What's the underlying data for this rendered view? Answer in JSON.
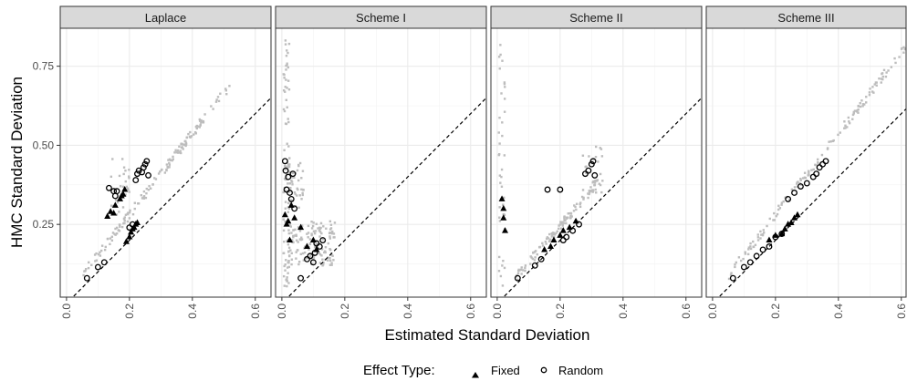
{
  "chart_data": {
    "type": "scatter",
    "xlabel": "Estimated Standard Deviation",
    "ylabel": "HMC Standard Deviation",
    "xlim": [
      -0.02,
      0.65
    ],
    "ylim": [
      0.02,
      0.87
    ],
    "x_ticks": [
      0.0,
      0.2,
      0.4,
      0.6
    ],
    "x_tick_labels": [
      "0.0",
      "0.2",
      "0.4",
      "0.6"
    ],
    "y_ticks": [
      0.25,
      0.5,
      0.75
    ],
    "y_tick_labels": [
      "0.25",
      "0.50",
      "0.75"
    ],
    "reference_line": "identity (y = x), dashed",
    "grid": true,
    "legend": {
      "title": "Effect Type:",
      "position": "bottom",
      "entries": [
        {
          "label": "Fixed",
          "marker": "triangle-filled"
        },
        {
          "label": "Random",
          "marker": "circle-open"
        }
      ]
    },
    "background_color": "#bdbdbd",
    "point_color": "#000000",
    "panels": [
      {
        "title": "Laplace",
        "fixed": [
          [
            0.13,
            0.275
          ],
          [
            0.14,
            0.29
          ],
          [
            0.15,
            0.285
          ],
          [
            0.155,
            0.31
          ],
          [
            0.17,
            0.33
          ],
          [
            0.175,
            0.34
          ],
          [
            0.18,
            0.345
          ],
          [
            0.185,
            0.36
          ],
          [
            0.19,
            0.195
          ],
          [
            0.2,
            0.21
          ],
          [
            0.205,
            0.225
          ],
          [
            0.21,
            0.235
          ],
          [
            0.215,
            0.24
          ],
          [
            0.22,
            0.25
          ],
          [
            0.225,
            0.255
          ]
        ],
        "random": [
          [
            0.065,
            0.08
          ],
          [
            0.1,
            0.115
          ],
          [
            0.12,
            0.13
          ],
          [
            0.135,
            0.365
          ],
          [
            0.15,
            0.355
          ],
          [
            0.155,
            0.34
          ],
          [
            0.16,
            0.355
          ],
          [
            0.2,
            0.24
          ],
          [
            0.21,
            0.25
          ],
          [
            0.22,
            0.39
          ],
          [
            0.225,
            0.41
          ],
          [
            0.23,
            0.42
          ],
          [
            0.24,
            0.415
          ],
          [
            0.245,
            0.43
          ],
          [
            0.25,
            0.44
          ],
          [
            0.255,
            0.45
          ],
          [
            0.26,
            0.405
          ]
        ]
      },
      {
        "title": "Scheme I",
        "fixed": [
          [
            0.01,
            0.28
          ],
          [
            0.015,
            0.25
          ],
          [
            0.02,
            0.26
          ],
          [
            0.025,
            0.2
          ],
          [
            0.03,
            0.31
          ],
          [
            0.04,
            0.27
          ],
          [
            0.06,
            0.24
          ],
          [
            0.08,
            0.18
          ],
          [
            0.1,
            0.2
          ],
          [
            0.11,
            0.17
          ]
        ],
        "random": [
          [
            0.01,
            0.45
          ],
          [
            0.012,
            0.42
          ],
          [
            0.015,
            0.36
          ],
          [
            0.02,
            0.4
          ],
          [
            0.025,
            0.35
          ],
          [
            0.03,
            0.33
          ],
          [
            0.035,
            0.41
          ],
          [
            0.04,
            0.3
          ],
          [
            0.06,
            0.08
          ],
          [
            0.08,
            0.14
          ],
          [
            0.09,
            0.15
          ],
          [
            0.1,
            0.13
          ],
          [
            0.105,
            0.16
          ],
          [
            0.11,
            0.19
          ],
          [
            0.12,
            0.18
          ],
          [
            0.13,
            0.2
          ]
        ]
      },
      {
        "title": "Scheme II",
        "fixed": [
          [
            0.015,
            0.33
          ],
          [
            0.02,
            0.3
          ],
          [
            0.02,
            0.27
          ],
          [
            0.025,
            0.23
          ],
          [
            0.15,
            0.17
          ],
          [
            0.17,
            0.18
          ],
          [
            0.18,
            0.2
          ],
          [
            0.2,
            0.215
          ],
          [
            0.21,
            0.23
          ],
          [
            0.23,
            0.24
          ],
          [
            0.25,
            0.26
          ]
        ],
        "random": [
          [
            0.065,
            0.08
          ],
          [
            0.12,
            0.12
          ],
          [
            0.14,
            0.14
          ],
          [
            0.16,
            0.36
          ],
          [
            0.2,
            0.36
          ],
          [
            0.21,
            0.2
          ],
          [
            0.22,
            0.21
          ],
          [
            0.24,
            0.23
          ],
          [
            0.26,
            0.25
          ],
          [
            0.28,
            0.41
          ],
          [
            0.29,
            0.42
          ],
          [
            0.3,
            0.44
          ],
          [
            0.305,
            0.45
          ],
          [
            0.31,
            0.405
          ]
        ]
      },
      {
        "title": "Scheme III",
        "fixed": [
          [
            0.18,
            0.2
          ],
          [
            0.2,
            0.215
          ],
          [
            0.22,
            0.22
          ],
          [
            0.23,
            0.235
          ],
          [
            0.24,
            0.25
          ],
          [
            0.25,
            0.255
          ],
          [
            0.26,
            0.27
          ],
          [
            0.27,
            0.28
          ]
        ],
        "random": [
          [
            0.065,
            0.08
          ],
          [
            0.1,
            0.115
          ],
          [
            0.12,
            0.13
          ],
          [
            0.14,
            0.15
          ],
          [
            0.16,
            0.17
          ],
          [
            0.18,
            0.18
          ],
          [
            0.2,
            0.21
          ],
          [
            0.22,
            0.22
          ],
          [
            0.24,
            0.33
          ],
          [
            0.26,
            0.35
          ],
          [
            0.28,
            0.37
          ],
          [
            0.3,
            0.38
          ],
          [
            0.32,
            0.4
          ],
          [
            0.33,
            0.41
          ],
          [
            0.34,
            0.43
          ],
          [
            0.35,
            0.44
          ],
          [
            0.36,
            0.45
          ]
        ]
      }
    ]
  }
}
